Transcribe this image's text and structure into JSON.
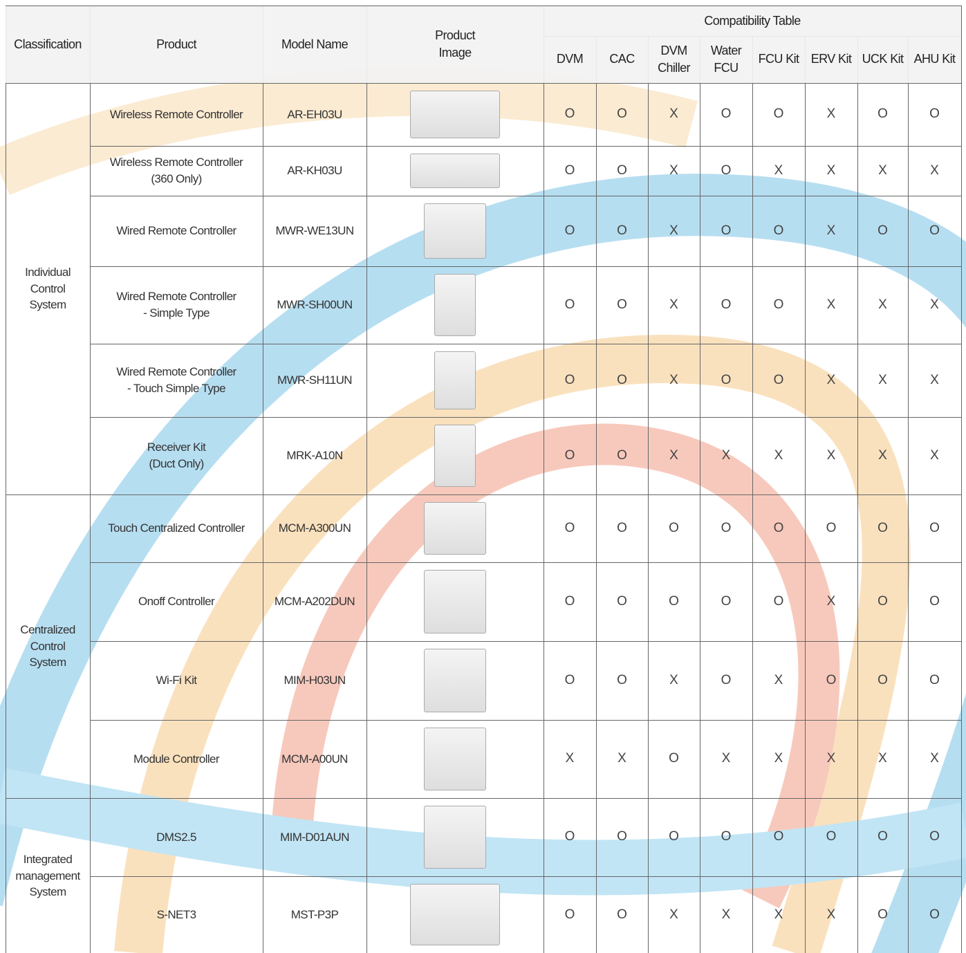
{
  "header": {
    "classification": "Classification",
    "product": "Product",
    "model": "Model Name",
    "image": "Product\nImage",
    "compatibility": "Compatibility Table",
    "columns": [
      "DVM",
      "CAC",
      "DVM\nChiller",
      "Water\nFCU",
      "FCU Kit",
      "ERV Kit",
      "UCK Kit",
      "AHU Kit"
    ]
  },
  "groups": [
    {
      "classification": "Individual\nControl\nSystem",
      "rows": [
        {
          "product": "Wireless Remote Controller",
          "model": "AR-EH03U",
          "compat": [
            "O",
            "O",
            "X",
            "O",
            "O",
            "X",
            "O",
            "O"
          ]
        },
        {
          "product": "Wireless Remote Controller\n(360 Only)",
          "model": "AR-KH03U",
          "compat": [
            "O",
            "O",
            "X",
            "O",
            "X",
            "X",
            "X",
            "X"
          ]
        },
        {
          "product": "Wired Remote Controller",
          "model": "MWR-WE13UN",
          "compat": [
            "O",
            "O",
            "X",
            "O",
            "O",
            "X",
            "O",
            "O"
          ]
        },
        {
          "product": "Wired Remote Controller\n- Simple Type",
          "model": "MWR-SH00UN",
          "compat": [
            "O",
            "O",
            "X",
            "O",
            "O",
            "X",
            "X",
            "X"
          ]
        },
        {
          "product": "Wired Remote Controller\n- Touch Simple Type",
          "model": "MWR-SH11UN",
          "compat": [
            "O",
            "O",
            "X",
            "O",
            "O",
            "X",
            "X",
            "X"
          ]
        },
        {
          "product": "Receiver Kit\n(Duct Only)",
          "model": "MRK-A10N",
          "compat": [
            "O",
            "O",
            "X",
            "X",
            "X",
            "X",
            "X",
            "X"
          ]
        }
      ]
    },
    {
      "classification": "Centralized\nControl\nSystem",
      "rows": [
        {
          "product": "Touch Centralized Controller",
          "model": "MCM-A300UN",
          "compat": [
            "O",
            "O",
            "O",
            "O",
            "O",
            "O",
            "O",
            "O"
          ]
        },
        {
          "product": "Onoff Controller",
          "model": "MCM-A202DUN",
          "compat": [
            "O",
            "O",
            "O",
            "O",
            "O",
            "X",
            "O",
            "O"
          ]
        },
        {
          "product": "Wi-Fi Kit",
          "model": "MIM-H03UN",
          "compat": [
            "O",
            "O",
            "X",
            "O",
            "X",
            "O",
            "O",
            "O"
          ]
        },
        {
          "product": "Module Controller",
          "model": "MCM-A00UN",
          "compat": [
            "X",
            "X",
            "O",
            "X",
            "X",
            "X",
            "X",
            "X"
          ]
        }
      ]
    },
    {
      "classification": "Integrated\nmanagement\nSystem",
      "rows": [
        {
          "product": "DMS2.5",
          "model": "MIM-D01AUN",
          "compat": [
            "O",
            "O",
            "O",
            "O",
            "O",
            "O",
            "O",
            "O"
          ]
        },
        {
          "product": "S-NET3",
          "model": "MST-P3P",
          "compat": [
            "O",
            "O",
            "X",
            "X",
            "X",
            "X",
            "O",
            "O"
          ]
        }
      ]
    }
  ]
}
